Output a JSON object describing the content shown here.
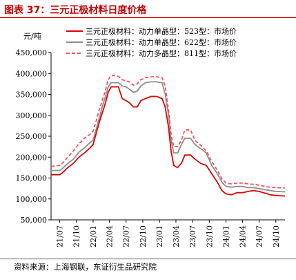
{
  "header": {
    "title": "图表 37：三元正极材料日度价格"
  },
  "footer": {
    "source": "资料来源：上海钢联，东证衍生品研究院"
  },
  "chart_data": {
    "type": "line",
    "unit_label": "元/吨",
    "ylim": [
      50000,
      450000
    ],
    "y_ticks": [
      "50,000",
      "100,000",
      "150,000",
      "200,000",
      "250,000",
      "300,000",
      "350,000",
      "400,000",
      "450,000"
    ],
    "y_tick_values": [
      50000,
      100000,
      150000,
      200000,
      250000,
      300000,
      350000,
      400000,
      450000
    ],
    "x_ticks": [
      "21/07",
      "21/10",
      "22/01",
      "22/04",
      "22/07",
      "22/10",
      "23/01",
      "23/04",
      "23/07",
      "23/10",
      "24/01",
      "24/04",
      "24/07",
      "24/10"
    ],
    "x_range": [
      "2021-05-15",
      "2024-11-20"
    ],
    "grid": false,
    "legend_position": "top-right",
    "series": [
      {
        "name": "三元正极材料：动力单晶型：523型：市场价",
        "color": "#e00000",
        "dash": "solid",
        "points": [
          [
            "2021-05-15",
            158000
          ],
          [
            "2021-07-01",
            158000
          ],
          [
            "2021-07-15",
            162000
          ],
          [
            "2021-08-15",
            175000
          ],
          [
            "2021-09-15",
            185000
          ],
          [
            "2021-10-15",
            200000
          ],
          [
            "2021-11-15",
            210000
          ],
          [
            "2021-12-15",
            222000
          ],
          [
            "2022-01-01",
            230000
          ],
          [
            "2022-01-20",
            260000
          ],
          [
            "2022-02-05",
            285000
          ],
          [
            "2022-02-20",
            305000
          ],
          [
            "2022-03-10",
            330000
          ],
          [
            "2022-03-25",
            355000
          ],
          [
            "2022-04-10",
            368000
          ],
          [
            "2022-05-01",
            368000
          ],
          [
            "2022-05-20",
            368000
          ],
          [
            "2022-06-10",
            340000
          ],
          [
            "2022-07-01",
            335000
          ],
          [
            "2022-07-20",
            330000
          ],
          [
            "2022-08-10",
            320000
          ],
          [
            "2022-09-01",
            320000
          ],
          [
            "2022-09-20",
            335000
          ],
          [
            "2022-10-15",
            340000
          ],
          [
            "2022-11-15",
            345000
          ],
          [
            "2022-12-15",
            345000
          ],
          [
            "2023-01-15",
            340000
          ],
          [
            "2023-02-01",
            320000
          ],
          [
            "2023-02-20",
            270000
          ],
          [
            "2023-03-05",
            215000
          ],
          [
            "2023-03-20",
            180000
          ],
          [
            "2023-04-10",
            175000
          ],
          [
            "2023-05-01",
            185000
          ],
          [
            "2023-05-20",
            205000
          ],
          [
            "2023-06-20",
            205000
          ],
          [
            "2023-07-15",
            195000
          ],
          [
            "2023-08-15",
            185000
          ],
          [
            "2023-09-15",
            180000
          ],
          [
            "2023-10-15",
            160000
          ],
          [
            "2023-11-15",
            140000
          ],
          [
            "2023-12-10",
            120000
          ],
          [
            "2024-01-01",
            112000
          ],
          [
            "2024-02-01",
            110000
          ],
          [
            "2024-03-01",
            115000
          ],
          [
            "2024-04-01",
            115000
          ],
          [
            "2024-05-01",
            118000
          ],
          [
            "2024-06-01",
            120000
          ],
          [
            "2024-07-01",
            118000
          ],
          [
            "2024-08-01",
            114000
          ],
          [
            "2024-09-01",
            110000
          ],
          [
            "2024-10-01",
            108000
          ],
          [
            "2024-11-20",
            107000
          ]
        ]
      },
      {
        "name": "三元正极材料：动力单晶型：622型：市场价",
        "color": "#8c8c8c",
        "dash": "solid",
        "points": [
          [
            "2021-05-15",
            168000
          ],
          [
            "2021-07-01",
            168000
          ],
          [
            "2021-07-15",
            172000
          ],
          [
            "2021-08-15",
            185000
          ],
          [
            "2021-09-15",
            195000
          ],
          [
            "2021-10-15",
            212000
          ],
          [
            "2021-11-15",
            222000
          ],
          [
            "2021-12-15",
            235000
          ],
          [
            "2022-01-01",
            240000
          ],
          [
            "2022-01-20",
            270000
          ],
          [
            "2022-02-05",
            295000
          ],
          [
            "2022-02-20",
            320000
          ],
          [
            "2022-03-10",
            345000
          ],
          [
            "2022-03-25",
            368000
          ],
          [
            "2022-04-10",
            378000
          ],
          [
            "2022-05-01",
            378000
          ],
          [
            "2022-05-20",
            378000
          ],
          [
            "2022-06-10",
            370000
          ],
          [
            "2022-07-01",
            368000
          ],
          [
            "2022-07-20",
            362000
          ],
          [
            "2022-08-10",
            355000
          ],
          [
            "2022-09-01",
            358000
          ],
          [
            "2022-09-20",
            370000
          ],
          [
            "2022-10-15",
            378000
          ],
          [
            "2022-11-15",
            380000
          ],
          [
            "2022-12-15",
            380000
          ],
          [
            "2023-01-15",
            378000
          ],
          [
            "2023-02-01",
            350000
          ],
          [
            "2023-02-20",
            300000
          ],
          [
            "2023-03-05",
            240000
          ],
          [
            "2023-03-20",
            210000
          ],
          [
            "2023-04-10",
            210000
          ],
          [
            "2023-05-01",
            230000
          ],
          [
            "2023-05-20",
            245000
          ],
          [
            "2023-06-20",
            245000
          ],
          [
            "2023-07-15",
            230000
          ],
          [
            "2023-08-15",
            220000
          ],
          [
            "2023-09-15",
            210000
          ],
          [
            "2023-10-15",
            180000
          ],
          [
            "2023-11-15",
            160000
          ],
          [
            "2023-12-10",
            140000
          ],
          [
            "2024-01-01",
            130000
          ],
          [
            "2024-02-01",
            128000
          ],
          [
            "2024-03-01",
            130000
          ],
          [
            "2024-04-01",
            130000
          ],
          [
            "2024-05-01",
            127000
          ],
          [
            "2024-06-01",
            127000
          ],
          [
            "2024-07-01",
            125000
          ],
          [
            "2024-08-01",
            122000
          ],
          [
            "2024-09-01",
            120000
          ],
          [
            "2024-10-01",
            118000
          ],
          [
            "2024-11-20",
            117000
          ]
        ]
      },
      {
        "name": "三元正极材料：动力多晶型：811型：市场价",
        "color": "#ff4d5a",
        "dash": "dashed",
        "points": [
          [
            "2021-05-15",
            178000
          ],
          [
            "2021-07-01",
            180000
          ],
          [
            "2021-07-15",
            185000
          ],
          [
            "2021-08-15",
            200000
          ],
          [
            "2021-09-15",
            215000
          ],
          [
            "2021-10-15",
            232000
          ],
          [
            "2021-11-15",
            245000
          ],
          [
            "2021-12-15",
            255000
          ],
          [
            "2022-01-01",
            262000
          ],
          [
            "2022-01-20",
            290000
          ],
          [
            "2022-02-05",
            315000
          ],
          [
            "2022-02-20",
            335000
          ],
          [
            "2022-03-10",
            360000
          ],
          [
            "2022-03-25",
            385000
          ],
          [
            "2022-04-10",
            395000
          ],
          [
            "2022-05-01",
            395000
          ],
          [
            "2022-05-20",
            393000
          ],
          [
            "2022-06-10",
            385000
          ],
          [
            "2022-07-01",
            382000
          ],
          [
            "2022-07-20",
            380000
          ],
          [
            "2022-08-10",
            372000
          ],
          [
            "2022-09-01",
            375000
          ],
          [
            "2022-09-20",
            385000
          ],
          [
            "2022-10-15",
            390000
          ],
          [
            "2022-11-15",
            392000
          ],
          [
            "2022-12-15",
            392000
          ],
          [
            "2023-01-15",
            390000
          ],
          [
            "2023-02-01",
            370000
          ],
          [
            "2023-02-20",
            310000
          ],
          [
            "2023-03-05",
            255000
          ],
          [
            "2023-03-20",
            225000
          ],
          [
            "2023-04-10",
            225000
          ],
          [
            "2023-05-01",
            240000
          ],
          [
            "2023-05-20",
            265000
          ],
          [
            "2023-06-20",
            265000
          ],
          [
            "2023-07-15",
            240000
          ],
          [
            "2023-08-15",
            228000
          ],
          [
            "2023-09-15",
            215000
          ],
          [
            "2023-10-15",
            190000
          ],
          [
            "2023-11-15",
            168000
          ],
          [
            "2023-12-10",
            148000
          ],
          [
            "2024-01-01",
            138000
          ],
          [
            "2024-02-01",
            136000
          ],
          [
            "2024-03-01",
            138000
          ],
          [
            "2024-04-01",
            138000
          ],
          [
            "2024-05-01",
            136000
          ],
          [
            "2024-06-01",
            135000
          ],
          [
            "2024-07-01",
            133000
          ],
          [
            "2024-08-01",
            130000
          ],
          [
            "2024-09-01",
            128000
          ],
          [
            "2024-10-01",
            127000
          ],
          [
            "2024-11-20",
            126000
          ]
        ]
      }
    ]
  }
}
